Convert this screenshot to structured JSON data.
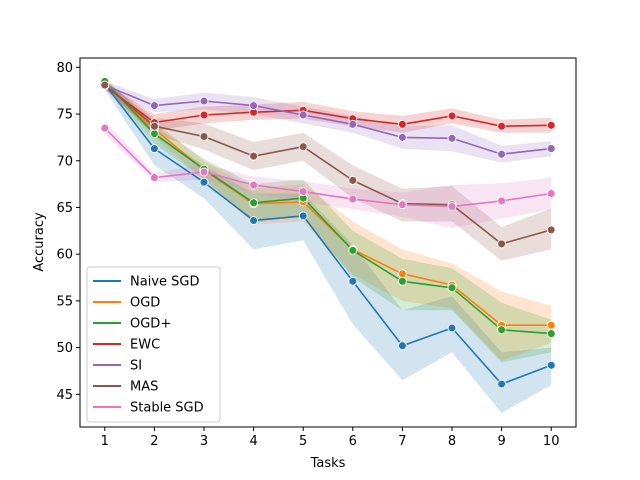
{
  "chart_data": {
    "type": "line",
    "title": "",
    "xlabel": "Tasks",
    "ylabel": "Accuracy",
    "x": [
      1,
      2,
      3,
      4,
      5,
      6,
      7,
      8,
      9,
      10
    ],
    "xlim": [
      0.5,
      10.5
    ],
    "ylim": [
      41.5,
      81.0
    ],
    "xticks": [
      1,
      2,
      3,
      4,
      5,
      6,
      7,
      8,
      9,
      10
    ],
    "yticks": [
      45,
      50,
      55,
      60,
      65,
      70,
      75,
      80
    ],
    "grid": false,
    "legend_position": "lower-left",
    "series": [
      {
        "name": "Naive SGD",
        "color": "#1f77b4",
        "values": [
          78.2,
          71.3,
          67.7,
          63.6,
          64.1,
          57.1,
          50.2,
          52.1,
          46.1,
          48.1
        ],
        "lower": [
          77.6,
          69.5,
          66.0,
          60.5,
          61.5,
          52.5,
          46.5,
          49.5,
          43.0,
          46.0
        ],
        "upper": [
          78.8,
          73.0,
          69.5,
          66.5,
          66.5,
          61.0,
          54.0,
          55.5,
          49.5,
          50.0
        ]
      },
      {
        "name": "OGD",
        "color": "#ff7f0e",
        "values": [
          78.3,
          73.4,
          69.0,
          65.4,
          65.6,
          60.5,
          57.9,
          56.7,
          52.4,
          52.4
        ],
        "lower": [
          77.9,
          72.5,
          68.0,
          63.2,
          63.5,
          57.8,
          55.0,
          54.2,
          48.6,
          50.5
        ],
        "upper": [
          78.7,
          74.2,
          70.0,
          67.0,
          67.5,
          63.5,
          60.5,
          59.0,
          56.0,
          54.5
        ]
      },
      {
        "name": "OGD+",
        "color": "#2ca02c",
        "values": [
          78.5,
          72.9,
          69.1,
          65.5,
          66.0,
          60.4,
          57.1,
          56.4,
          51.9,
          51.5
        ],
        "lower": [
          78.0,
          71.8,
          68.0,
          63.5,
          64.0,
          57.5,
          54.0,
          54.0,
          48.4,
          49.5
        ],
        "upper": [
          78.9,
          73.8,
          70.2,
          67.5,
          68.0,
          62.5,
          59.5,
          58.5,
          54.8,
          53.0
        ]
      },
      {
        "name": "EWC",
        "color": "#d62728",
        "values": [
          78.0,
          74.1,
          74.9,
          75.2,
          75.4,
          74.5,
          73.9,
          74.8,
          73.7,
          73.8
        ],
        "lower": [
          77.6,
          73.2,
          74.0,
          74.4,
          74.5,
          73.7,
          73.0,
          74.0,
          73.0,
          73.0
        ],
        "upper": [
          78.4,
          75.0,
          75.8,
          76.0,
          76.3,
          75.3,
          74.8,
          75.6,
          74.4,
          74.6
        ]
      },
      {
        "name": "SI",
        "color": "#9467bd",
        "values": [
          78.1,
          75.9,
          76.4,
          75.9,
          74.9,
          73.9,
          72.5,
          72.4,
          70.7,
          71.3
        ],
        "lower": [
          77.7,
          75.2,
          75.5,
          75.0,
          74.0,
          73.0,
          71.3,
          71.0,
          69.8,
          70.5
        ],
        "upper": [
          78.5,
          76.6,
          77.3,
          76.8,
          75.8,
          74.8,
          73.7,
          73.8,
          71.6,
          72.1
        ]
      },
      {
        "name": "MAS",
        "color": "#8c564b",
        "values": [
          78.1,
          73.7,
          72.6,
          70.5,
          71.5,
          67.9,
          65.4,
          65.3,
          61.1,
          62.6
        ],
        "lower": [
          77.7,
          72.8,
          71.2,
          69.0,
          70.0,
          66.0,
          63.5,
          63.5,
          59.3,
          60.5
        ],
        "upper": [
          78.5,
          74.6,
          74.0,
          72.0,
          73.0,
          69.5,
          67.0,
          67.3,
          62.9,
          64.9
        ]
      },
      {
        "name": "Stable SGD",
        "color": "#e377c2",
        "values": [
          73.5,
          68.2,
          68.8,
          67.4,
          66.7,
          65.9,
          65.3,
          65.1,
          65.7,
          66.5
        ],
        "lower": [
          72.8,
          67.7,
          68.0,
          66.5,
          65.6,
          64.8,
          64.0,
          62.8,
          63.8,
          64.8
        ],
        "upper": [
          74.2,
          68.7,
          69.6,
          68.3,
          67.8,
          67.0,
          66.6,
          67.4,
          67.6,
          68.2
        ]
      }
    ]
  }
}
